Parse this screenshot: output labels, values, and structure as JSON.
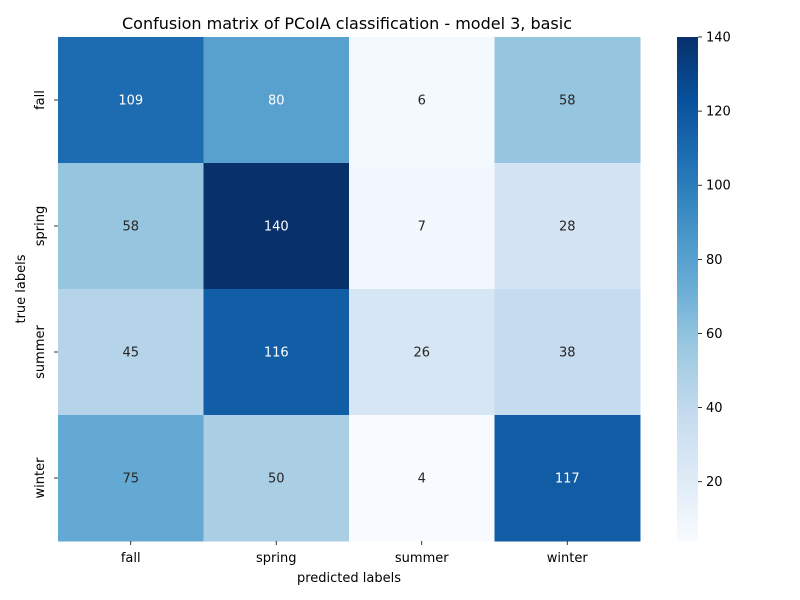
{
  "chart_data": {
    "type": "heatmap",
    "title": "Confusion matrix of PCoIA classification - model 3, basic",
    "xlabel": "predicted labels",
    "ylabel": "true labels",
    "x_categories": [
      "fall",
      "spring",
      "summer",
      "winter"
    ],
    "y_categories": [
      "fall",
      "spring",
      "summer",
      "winter"
    ],
    "values": [
      [
        109,
        80,
        6,
        58
      ],
      [
        58,
        140,
        7,
        28
      ],
      [
        45,
        116,
        26,
        38
      ],
      [
        75,
        50,
        4,
        117
      ]
    ],
    "colorbar": {
      "min": 4,
      "max": 140,
      "ticks": [
        20,
        40,
        60,
        80,
        100,
        120,
        140
      ],
      "colormap": "Blues"
    }
  }
}
